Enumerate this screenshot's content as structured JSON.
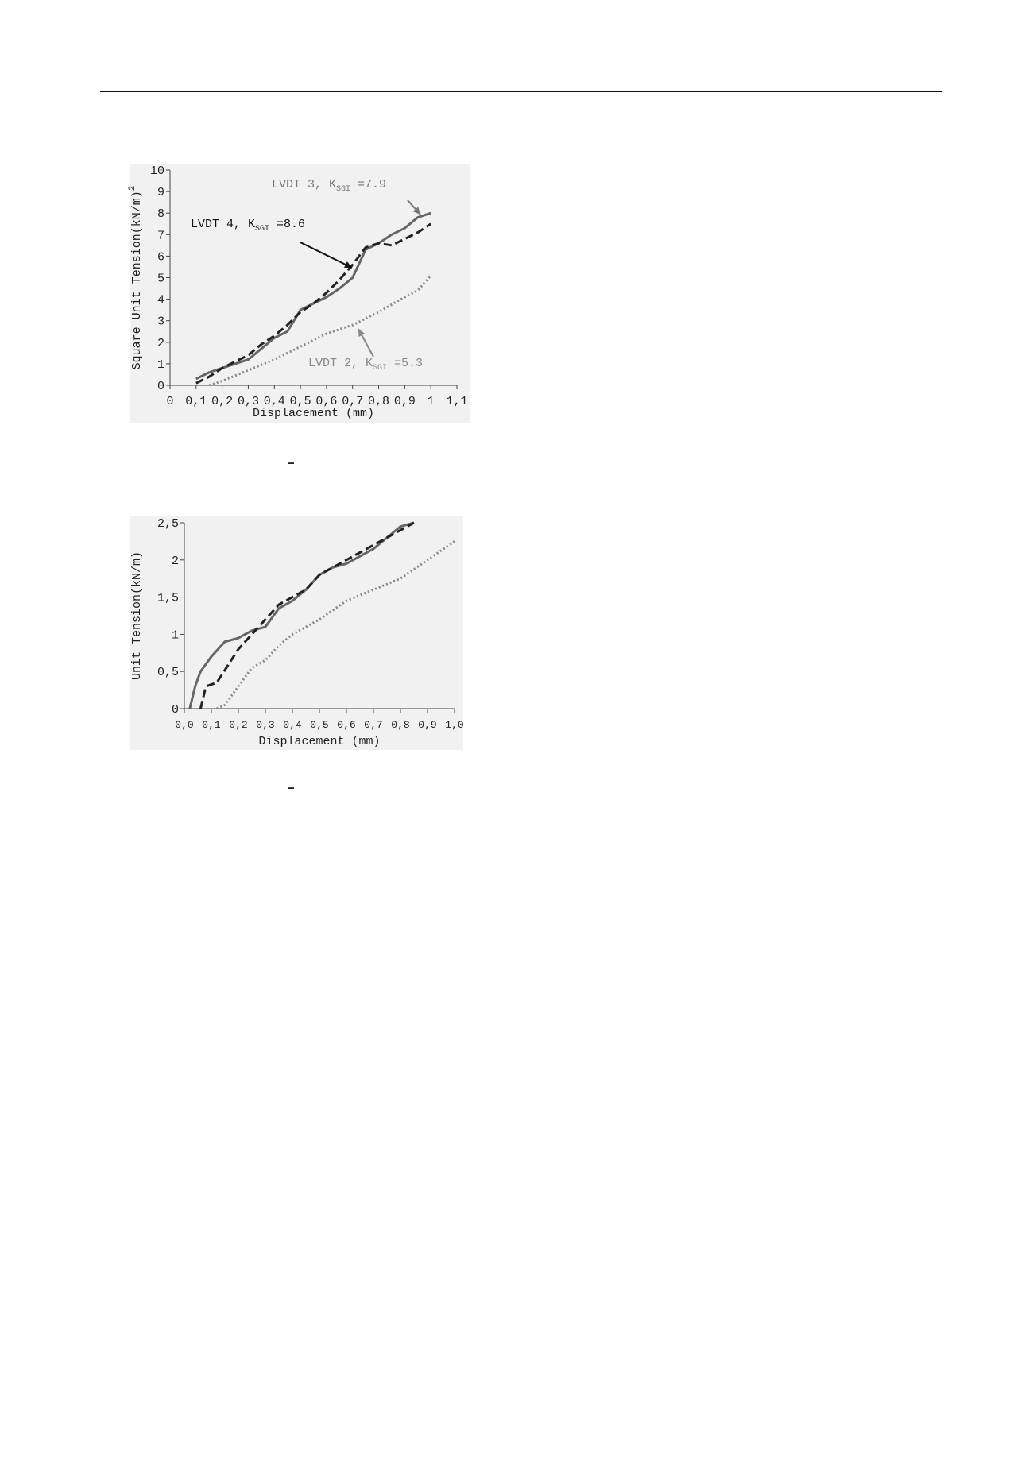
{
  "chart_data": [
    {
      "type": "line",
      "y_label": "Square Unit Tension(kN/m)",
      "y_label_sup": "2",
      "x_label": "Displacement (mm)",
      "xlim": [
        0,
        1.1
      ],
      "xticks": [
        0,
        {
          "value": 0.1,
          "label": "0,1"
        },
        {
          "value": 0.2,
          "label": "0,2"
        },
        {
          "value": 0.3,
          "label": "0,3"
        },
        {
          "value": 0.4,
          "label": "0,4"
        },
        {
          "value": 0.5,
          "label": "0,5"
        },
        {
          "value": 0.6,
          "label": "0,6"
        },
        {
          "value": 0.7,
          "label": "0,7"
        },
        {
          "value": 0.8,
          "label": "0,8"
        },
        {
          "value": 0.9,
          "label": "0,9"
        },
        1,
        {
          "value": 1.1,
          "label": "1,1"
        }
      ],
      "ylim": [
        0,
        10
      ],
      "yticks": [
        0,
        1,
        2,
        3,
        4,
        5,
        6,
        7,
        8,
        9,
        10
      ],
      "series": [
        {
          "color": "#666666",
          "style": "solid",
          "x": [
            0.1,
            0.15,
            0.2,
            0.3,
            0.35,
            0.4,
            0.45,
            0.5,
            0.55,
            0.6,
            0.65,
            0.7,
            0.75,
            0.8,
            0.85,
            0.9,
            0.95,
            1.0
          ],
          "values": [
            0.3,
            0.6,
            0.8,
            1.2,
            1.7,
            2.2,
            2.5,
            3.5,
            3.8,
            4.1,
            4.5,
            5,
            6.3,
            6.6,
            7,
            7.3,
            7.8,
            8.0
          ]
        },
        {
          "color": "#222222",
          "style": "dashed",
          "x": [
            0.1,
            0.15,
            0.2,
            0.3,
            0.35,
            0.4,
            0.45,
            0.5,
            0.55,
            0.6,
            0.65,
            0.7,
            0.75,
            0.8,
            0.85,
            0.9,
            0.95,
            1.0
          ],
          "values": [
            0.1,
            0.4,
            0.8,
            1.4,
            1.9,
            2.3,
            2.8,
            3.4,
            3.8,
            4.3,
            4.9,
            5.6,
            6.4,
            6.6,
            6.5,
            6.8,
            7.1,
            7.5
          ]
        },
        {
          "color": "#888888",
          "style": "dotted",
          "x": [
            0.15,
            0.2,
            0.3,
            0.4,
            0.5,
            0.6,
            0.7,
            0.8,
            0.9,
            0.95,
            1.0
          ],
          "values": [
            0,
            0.2,
            0.7,
            1.2,
            1.8,
            2.4,
            2.8,
            3.4,
            4.1,
            4.4,
            5.1
          ]
        }
      ],
      "annotations": [
        {
          "text": "LVDT 3, K",
          "sub": "SGI",
          "tail": " =7.9",
          "color": "#777777"
        },
        {
          "text": "LVDT 4, K",
          "sub": "SGI",
          "tail": " =8.6",
          "color": "#111111"
        },
        {
          "text": "LVDT 2, K",
          "sub": "SGI",
          "tail": " =5.3",
          "color": "#888888"
        }
      ],
      "caption": "–"
    },
    {
      "type": "line",
      "y_label": "Unit Tension(kN/m)",
      "x_label": "Displacement (mm)",
      "xlim": [
        0,
        1.0
      ],
      "xticks": [
        {
          "value": 0,
          "label": "0,0"
        },
        {
          "value": 0.1,
          "label": "0,1"
        },
        {
          "value": 0.2,
          "label": "0,2"
        },
        {
          "value": 0.3,
          "label": "0,3"
        },
        {
          "value": 0.4,
          "label": "0,4"
        },
        {
          "value": 0.5,
          "label": "0,5"
        },
        {
          "value": 0.6,
          "label": "0,6"
        },
        {
          "value": 0.7,
          "label": "0,7"
        },
        {
          "value": 0.8,
          "label": "0,8"
        },
        {
          "value": 0.9,
          "label": "0,9"
        },
        {
          "value": 1.0,
          "label": "1,0"
        }
      ],
      "ylim": [
        0,
        2.5
      ],
      "yticks": [
        0,
        {
          "value": 0.5,
          "label": "0,5"
        },
        1,
        {
          "value": 1.5,
          "label": "1,5"
        },
        2,
        {
          "value": 2.5,
          "label": "2,5"
        }
      ],
      "series": [
        {
          "color": "#666666",
          "style": "solid",
          "x": [
            0.02,
            0.04,
            0.06,
            0.1,
            0.15,
            0.2,
            0.25,
            0.3,
            0.35,
            0.4,
            0.45,
            0.5,
            0.55,
            0.6,
            0.7,
            0.75,
            0.8,
            0.85
          ],
          "values": [
            0,
            0.3,
            0.5,
            0.7,
            0.9,
            0.95,
            1.05,
            1.1,
            1.35,
            1.45,
            1.6,
            1.8,
            1.9,
            1.95,
            2.15,
            2.3,
            2.45,
            2.5
          ]
        },
        {
          "color": "#222222",
          "style": "dashed",
          "x": [
            0.06,
            0.08,
            0.12,
            0.2,
            0.25,
            0.3,
            0.35,
            0.4,
            0.45,
            0.5,
            0.6,
            0.7,
            0.8,
            0.85
          ],
          "values": [
            0,
            0.3,
            0.35,
            0.8,
            1.0,
            1.2,
            1.4,
            1.5,
            1.6,
            1.8,
            2.0,
            2.2,
            2.4,
            2.5
          ]
        },
        {
          "color": "#888888",
          "style": "dotted",
          "x": [
            0.12,
            0.15,
            0.2,
            0.25,
            0.3,
            0.35,
            0.4,
            0.5,
            0.6,
            0.7,
            0.8,
            0.9,
            1.0
          ],
          "values": [
            0,
            0.05,
            0.3,
            0.55,
            0.65,
            0.85,
            1.0,
            1.2,
            1.45,
            1.6,
            1.75,
            2.0,
            2.25
          ]
        }
      ],
      "caption": "–"
    }
  ]
}
